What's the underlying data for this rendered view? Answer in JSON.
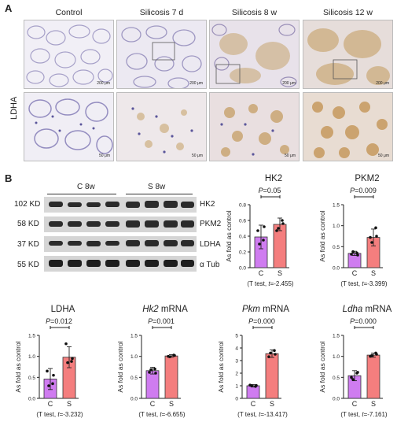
{
  "panels": {
    "a": "A",
    "b": "B"
  },
  "histology": {
    "row_label": "LDHA",
    "columns": [
      "Control",
      "Silicosis  7 d",
      "Silicosis  8 w",
      "Silicosis  12 w"
    ],
    "scale_top": "200 μm",
    "scale_bottom": "50 μm"
  },
  "western": {
    "group_c": "C 8w",
    "group_s": "S 8w",
    "left_labels": [
      "102 KD",
      "58 KD",
      "37 KD",
      "55 KD"
    ],
    "right_labels": [
      "HK2",
      "PKM2",
      "LDHA",
      "α Tub"
    ]
  },
  "colors": {
    "control": "#cf7cf0",
    "silicosis": "#f47e7e",
    "stain": "#c39a5c",
    "tissue": "#8d86b8"
  },
  "chart_data": [
    {
      "type": "bar",
      "title": "HK2",
      "title_italic": false,
      "ylabel": "As fold as control",
      "categories": [
        "C",
        "S"
      ],
      "values": [
        0.39,
        0.55
      ],
      "errors": [
        0.15,
        0.08
      ],
      "points": [
        [
          0.47,
          0.35,
          0.3,
          0.52
        ],
        [
          0.47,
          0.6,
          0.5,
          0.56
        ]
      ],
      "ylim": [
        0,
        0.8
      ],
      "yticks": [
        "0.0",
        "0.2",
        "0.4",
        "0.6",
        "0.8"
      ],
      "p_prefix": "P",
      "p_value": "=0.05",
      "test_pre": "(T test, ",
      "test_t": "t",
      "test_post": "=-2.455)"
    },
    {
      "type": "bar",
      "title": "PKM2",
      "title_italic": false,
      "ylabel": "As fold as control",
      "categories": [
        "C",
        "S"
      ],
      "values": [
        0.34,
        0.72
      ],
      "errors": [
        0.05,
        0.2
      ],
      "points": [
        [
          0.32,
          0.35,
          0.38,
          0.3
        ],
        [
          0.72,
          0.95,
          0.6,
          0.75
        ]
      ],
      "ylim": [
        0,
        1.5
      ],
      "yticks": [
        "0.0",
        "0.5",
        "1.0",
        "1.5"
      ],
      "p_prefix": "P",
      "p_value": "=0.009",
      "test_pre": "(T test, ",
      "test_t": "t",
      "test_post": "=-3.399)"
    },
    {
      "type": "bar",
      "title": "LDHA",
      "title_italic": false,
      "ylabel": "As fold as control",
      "categories": [
        "C",
        "S"
      ],
      "values": [
        0.46,
        0.98
      ],
      "errors": [
        0.25,
        0.25
      ],
      "points": [
        [
          0.65,
          0.35,
          0.3,
          0.55
        ],
        [
          1.3,
          0.88,
          0.85,
          0.95
        ]
      ],
      "ylim": [
        0,
        1.5
      ],
      "yticks": [
        "0.0",
        "0.5",
        "1.0",
        "1.5"
      ],
      "p_prefix": "P",
      "p_value": "=0.012",
      "test_pre": "(T test, ",
      "test_t": "t",
      "test_post": "=-3.232)"
    },
    {
      "type": "bar",
      "title": "Hk2",
      "title_suffix": " mRNA",
      "title_italic": true,
      "ylabel": "As fold as control",
      "categories": [
        "C",
        "S"
      ],
      "values": [
        0.66,
        1.01
      ],
      "errors": [
        0.08,
        0.03
      ],
      "points": [
        [
          0.62,
          0.7,
          0.68,
          0.6
        ],
        [
          1.0,
          1.03,
          0.99,
          1.02
        ]
      ],
      "ylim": [
        0,
        1.5
      ],
      "yticks": [
        "0.0",
        "0.5",
        "1.0",
        "1.5"
      ],
      "p_prefix": "P",
      "p_value": "=0.001",
      "test_pre": "(T test, ",
      "test_t": "t",
      "test_post": "=-6.655)"
    },
    {
      "type": "bar",
      "title": "Pkm",
      "title_suffix": " mRNA",
      "title_italic": true,
      "ylabel": "As fold as control",
      "categories": [
        "C",
        "S"
      ],
      "values": [
        1.0,
        3.55
      ],
      "errors": [
        0.1,
        0.3
      ],
      "points": [
        [
          1.05,
          0.95,
          1.0,
          1.02
        ],
        [
          3.3,
          3.8,
          3.6,
          3.5
        ]
      ],
      "ylim": [
        0,
        5
      ],
      "yticks": [
        "0",
        "1",
        "2",
        "3",
        "4",
        "5"
      ],
      "p_prefix": "P",
      "p_value": "=0.000",
      "test_pre": "(T test, ",
      "test_t": "t",
      "test_post": "=-13.417)"
    },
    {
      "type": "bar",
      "title": "Ldha",
      "title_suffix": " mRNA",
      "title_italic": true,
      "ylabel": "As fold as control",
      "categories": [
        "C",
        "S"
      ],
      "values": [
        0.54,
        1.03
      ],
      "errors": [
        0.12,
        0.05
      ],
      "points": [
        [
          0.5,
          0.6,
          0.45,
          0.62
        ],
        [
          1.0,
          1.08,
          1.02,
          1.05
        ]
      ],
      "ylim": [
        0,
        1.5
      ],
      "yticks": [
        "0.0",
        "0.5",
        "1.0",
        "1.5"
      ],
      "p_prefix": "P",
      "p_value": "=0.000",
      "test_pre": "(T test, ",
      "test_t": "t",
      "test_post": "=-7.161)"
    }
  ]
}
